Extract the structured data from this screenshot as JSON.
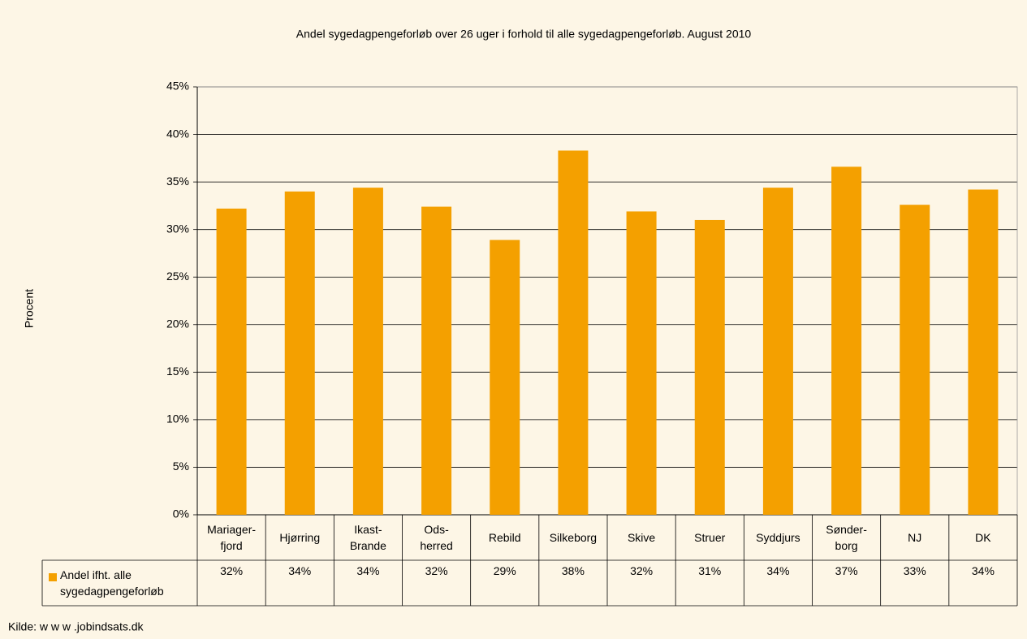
{
  "chart_data": {
    "type": "bar",
    "title": "Andel sygedagpengeforløb over 26 uger i forhold til alle sygedagpengeforløb. August 2010",
    "y_label": "Procent",
    "source": "Kilde: w w w .jobindsats.dk",
    "categories": [
      "Mariager-\nfjord",
      "Hjørring",
      "Ikast-\nBrande",
      "Ods-\nherred",
      "Rebild",
      "Silkeborg",
      "Skive",
      "Struer",
      "Syddjurs",
      "Sønder-\nborg",
      "NJ",
      "DK"
    ],
    "series": [
      {
        "name": "Andel ifht. alle sygedagpengeforløb",
        "color": "#f4a000",
        "values": [
          32.2,
          34.0,
          34.4,
          32.4,
          28.9,
          38.3,
          31.9,
          31.0,
          34.4,
          36.6,
          32.6,
          34.2
        ],
        "value_labels": [
          "32%",
          "34%",
          "34%",
          "32%",
          "29%",
          "38%",
          "32%",
          "31%",
          "34%",
          "37%",
          "33%",
          "34%"
        ]
      }
    ],
    "ylim": [
      0,
      45
    ],
    "yticks": [
      {
        "value": 0,
        "label": "0%"
      },
      {
        "value": 5,
        "label": "5%"
      },
      {
        "value": 10,
        "label": "10%"
      },
      {
        "value": 15,
        "label": "15%"
      },
      {
        "value": 20,
        "label": "20%"
      },
      {
        "value": 25,
        "label": "25%"
      },
      {
        "value": 30,
        "label": "30%"
      },
      {
        "value": 35,
        "label": "35%"
      },
      {
        "value": 40,
        "label": "40%"
      },
      {
        "value": 45,
        "label": "45%"
      }
    ],
    "grid": true
  }
}
